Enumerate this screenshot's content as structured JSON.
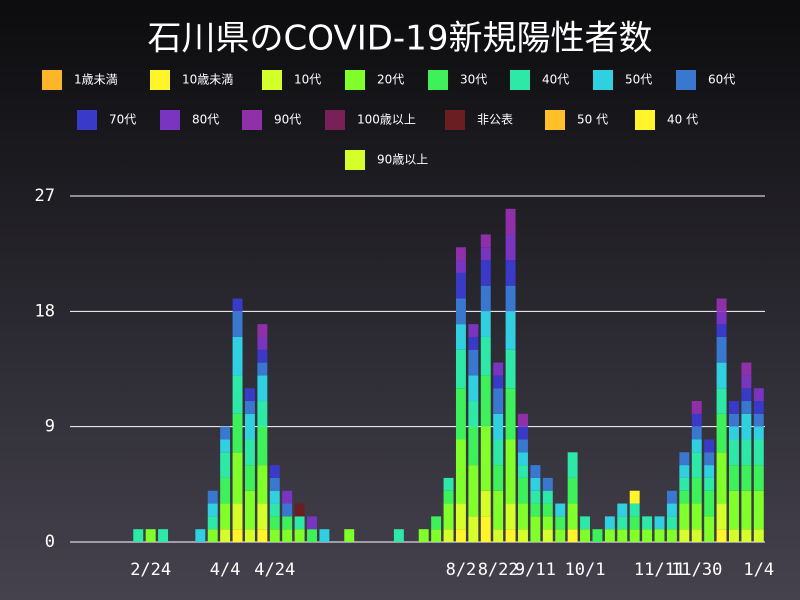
{
  "chart_data": {
    "type": "stacked-bar",
    "title": "石川県のCOVID-19新規陽性者数",
    "categories": [
      null,
      null,
      null,
      null,
      null,
      null,
      "2/24",
      null,
      null,
      null,
      null,
      null,
      "4/4",
      null,
      null,
      null,
      "4/24",
      null,
      null,
      null,
      null,
      null,
      null,
      null,
      null,
      null,
      null,
      null,
      null,
      null,
      null,
      "8/2",
      null,
      null,
      "8/22",
      null,
      null,
      "9/11",
      null,
      null,
      null,
      "10/1",
      null,
      null,
      null,
      null,
      null,
      "11/11",
      null,
      null,
      "11/30",
      null,
      null,
      null,
      null,
      "1/4"
    ],
    "ylim": [
      0,
      27
    ],
    "yticks": [
      0,
      9,
      18,
      27
    ],
    "grid": true,
    "series": [
      {
        "name": "1歳未満",
        "color": "#ffb52a",
        "values": [
          0,
          0,
          0,
          0,
          0,
          0,
          0,
          0,
          0,
          0,
          0,
          0,
          0,
          0,
          0,
          0,
          0,
          0,
          0,
          0,
          0,
          0,
          0,
          0,
          0,
          0,
          0,
          0,
          0,
          0,
          0,
          0,
          0,
          0,
          0,
          0,
          0,
          0,
          0,
          0,
          0,
          0,
          0,
          0,
          0,
          0,
          0,
          0,
          0,
          0,
          0,
          0,
          0,
          0,
          0,
          0
        ]
      },
      {
        "name": "10歳未満",
        "color": "#fff52a",
        "values": [
          0,
          0,
          0,
          0,
          0,
          0,
          0,
          0,
          0,
          0,
          0,
          0,
          0,
          1,
          0,
          1,
          0,
          0,
          0,
          0,
          0,
          0,
          0,
          0,
          0,
          0,
          0,
          0,
          0,
          0,
          0,
          1,
          0,
          2,
          0,
          1,
          0,
          0,
          0,
          0,
          1,
          0,
          0,
          0,
          0,
          0,
          0,
          0,
          0,
          0,
          0,
          0,
          1,
          0,
          0,
          0
        ]
      },
      {
        "name": "10代",
        "color": "#d4ff2a",
        "values": [
          0,
          0,
          0,
          0,
          0,
          0,
          0,
          0,
          0,
          0,
          0,
          0,
          1,
          2,
          1,
          2,
          0,
          0,
          0,
          0,
          0,
          0,
          0,
          0,
          0,
          0,
          0,
          0,
          0,
          0,
          1,
          2,
          2,
          2,
          1,
          2,
          1,
          0,
          1,
          0,
          0,
          0,
          0,
          0,
          0,
          0,
          0,
          0,
          0,
          1,
          1,
          0,
          2,
          1,
          1,
          1
        ]
      },
      {
        "name": "20代",
        "color": "#80ff2a",
        "values": [
          0,
          0,
          0,
          0,
          0,
          0,
          1,
          0,
          0,
          0,
          0,
          1,
          2,
          4,
          3,
          3,
          1,
          1,
          1,
          0,
          0,
          0,
          1,
          0,
          0,
          0,
          0,
          0,
          1,
          1,
          2,
          5,
          4,
          5,
          3,
          5,
          2,
          2,
          1,
          1,
          2,
          1,
          0,
          1,
          1,
          1,
          1,
          1,
          1,
          2,
          2,
          2,
          4,
          3,
          3,
          3
        ]
      },
      {
        "name": "30代",
        "color": "#3ef05a",
        "values": [
          0,
          0,
          0,
          0,
          0,
          0,
          0,
          0,
          0,
          0,
          0,
          0,
          2,
          3,
          2,
          3,
          1,
          1,
          0,
          1,
          0,
          0,
          0,
          0,
          0,
          0,
          0,
          0,
          0,
          1,
          1,
          4,
          3,
          4,
          2,
          4,
          2,
          1,
          1,
          1,
          2,
          0,
          1,
          0,
          0,
          1,
          0,
          0,
          0,
          1,
          2,
          2,
          3,
          2,
          2,
          2
        ]
      },
      {
        "name": "40代",
        "color": "#2ee8a8",
        "values": [
          0,
          0,
          0,
          0,
          0,
          1,
          0,
          1,
          0,
          0,
          0,
          1,
          2,
          3,
          2,
          2,
          1,
          0,
          1,
          0,
          0,
          0,
          0,
          0,
          0,
          0,
          1,
          0,
          0,
          0,
          1,
          3,
          2,
          3,
          2,
          3,
          1,
          1,
          1,
          0,
          2,
          1,
          0,
          0,
          1,
          1,
          1,
          0,
          1,
          1,
          2,
          1,
          2,
          2,
          2,
          2
        ]
      },
      {
        "name": "50代",
        "color": "#30d0e0",
        "values": [
          0,
          0,
          0,
          0,
          0,
          0,
          0,
          0,
          0,
          0,
          1,
          1,
          1,
          3,
          2,
          2,
          1,
          0,
          0,
          0,
          1,
          0,
          0,
          0,
          0,
          0,
          0,
          0,
          0,
          0,
          0,
          2,
          2,
          2,
          2,
          3,
          1,
          1,
          0,
          1,
          0,
          0,
          0,
          1,
          1,
          0,
          0,
          1,
          1,
          1,
          1,
          1,
          2,
          1,
          2,
          1
        ]
      },
      {
        "name": "60代",
        "color": "#3a78d0",
        "values": [
          0,
          0,
          0,
          0,
          0,
          0,
          0,
          0,
          0,
          0,
          0,
          1,
          1,
          2,
          1,
          1,
          1,
          1,
          0,
          0,
          0,
          0,
          0,
          0,
          0,
          0,
          0,
          0,
          0,
          0,
          0,
          2,
          2,
          2,
          2,
          2,
          1,
          1,
          1,
          0,
          0,
          0,
          0,
          0,
          0,
          0,
          0,
          0,
          1,
          1,
          1,
          1,
          2,
          1,
          1,
          1
        ]
      },
      {
        "name": "70代",
        "color": "#3a3ac8",
        "values": [
          0,
          0,
          0,
          0,
          0,
          0,
          0,
          0,
          0,
          0,
          0,
          0,
          0,
          1,
          1,
          1,
          1,
          0,
          0,
          0,
          0,
          0,
          0,
          0,
          0,
          0,
          0,
          0,
          0,
          0,
          0,
          2,
          1,
          2,
          1,
          2,
          1,
          0,
          0,
          0,
          0,
          0,
          0,
          0,
          0,
          0,
          0,
          0,
          0,
          0,
          1,
          1,
          1,
          1,
          1,
          1
        ]
      },
      {
        "name": "80代",
        "color": "#7a35c0",
        "values": [
          0,
          0,
          0,
          0,
          0,
          0,
          0,
          0,
          0,
          0,
          0,
          0,
          0,
          0,
          0,
          1,
          0,
          1,
          0,
          1,
          0,
          0,
          0,
          0,
          0,
          0,
          0,
          0,
          0,
          0,
          0,
          1,
          1,
          1,
          1,
          2,
          0,
          0,
          0,
          0,
          0,
          0,
          0,
          0,
          0,
          0,
          0,
          0,
          0,
          0,
          0,
          0,
          1,
          0,
          1,
          1
        ]
      },
      {
        "name": "90代",
        "color": "#9030a8",
        "values": [
          0,
          0,
          0,
          0,
          0,
          0,
          0,
          0,
          0,
          0,
          0,
          0,
          0,
          0,
          0,
          1,
          0,
          0,
          0,
          0,
          0,
          0,
          0,
          0,
          0,
          0,
          0,
          0,
          0,
          0,
          0,
          1,
          0,
          1,
          0,
          2,
          1,
          0,
          0,
          0,
          0,
          0,
          0,
          0,
          0,
          0,
          0,
          0,
          0,
          0,
          1,
          0,
          1,
          0,
          1,
          0
        ]
      },
      {
        "name": "100歳以上",
        "color": "#7a2058",
        "values": [
          0,
          0,
          0,
          0,
          0,
          0,
          0,
          0,
          0,
          0,
          0,
          0,
          0,
          0,
          0,
          0,
          0,
          0,
          0,
          0,
          0,
          0,
          0,
          0,
          0,
          0,
          0,
          0,
          0,
          0,
          0,
          0,
          0,
          0,
          0,
          0,
          0,
          0,
          0,
          0,
          0,
          0,
          0,
          0,
          0,
          0,
          0,
          0,
          0,
          0,
          0,
          0,
          0,
          0,
          0,
          0
        ]
      },
      {
        "name": "非公表",
        "color": "#6a1e22",
        "values": [
          0,
          0,
          0,
          0,
          0,
          0,
          0,
          0,
          0,
          0,
          0,
          0,
          0,
          0,
          0,
          0,
          0,
          0,
          1,
          0,
          0,
          0,
          0,
          0,
          0,
          0,
          0,
          0,
          0,
          0,
          0,
          0,
          0,
          0,
          0,
          0,
          0,
          0,
          0,
          0,
          0,
          0,
          0,
          0,
          0,
          0,
          0,
          0,
          0,
          0,
          0,
          0,
          0,
          0,
          0,
          0
        ]
      },
      {
        "name": "50 代",
        "color": "#ffc02a",
        "values": [
          0,
          0,
          0,
          0,
          0,
          0,
          0,
          0,
          0,
          0,
          0,
          0,
          0,
          0,
          0,
          0,
          0,
          0,
          0,
          0,
          0,
          0,
          0,
          0,
          0,
          0,
          0,
          0,
          0,
          0,
          0,
          0,
          0,
          0,
          0,
          0,
          0,
          0,
          0,
          0,
          0,
          0,
          0,
          0,
          0,
          0,
          0,
          0,
          0,
          0,
          0,
          0,
          0,
          0,
          0,
          0
        ]
      },
      {
        "name": "40 代",
        "color": "#fff52a",
        "values": [
          0,
          0,
          0,
          0,
          0,
          0,
          0,
          0,
          0,
          0,
          0,
          0,
          0,
          0,
          0,
          0,
          0,
          0,
          0,
          0,
          0,
          0,
          0,
          0,
          0,
          0,
          0,
          0,
          0,
          0,
          0,
          0,
          0,
          0,
          0,
          0,
          0,
          0,
          0,
          0,
          0,
          0,
          0,
          0,
          0,
          1,
          0,
          0,
          0,
          0,
          0,
          0,
          0,
          0,
          0,
          0
        ]
      },
      {
        "name": "90歳以上",
        "color": "#d4ff2a",
        "values": [
          0,
          0,
          0,
          0,
          0,
          0,
          0,
          0,
          0,
          0,
          0,
          0,
          0,
          0,
          0,
          0,
          0,
          0,
          0,
          0,
          0,
          0,
          0,
          0,
          0,
          0,
          0,
          0,
          0,
          0,
          0,
          0,
          0,
          0,
          0,
          0,
          0,
          0,
          0,
          0,
          0,
          0,
          0,
          0,
          0,
          0,
          0,
          0,
          0,
          0,
          0,
          0,
          0,
          0,
          0,
          0
        ]
      }
    ]
  }
}
